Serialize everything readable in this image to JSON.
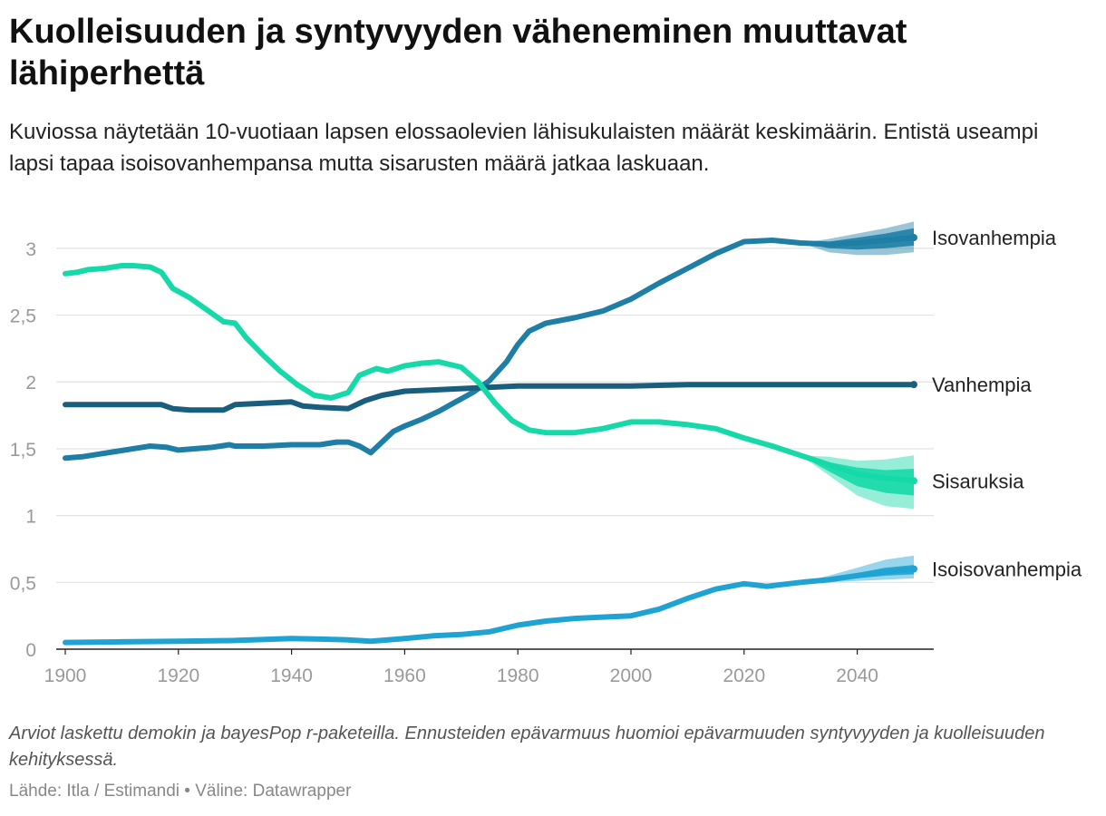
{
  "title": "Kuolleisuuden ja syntyvyyden väheneminen muuttavat lähiperhettä",
  "subtitle": "Kuviossa näytetään 10-vuotiaan lapsen elossaolevien lähisukulaisten määrät keskimäärin. Entistä useampi lapsi tapaa isoisovanhempansa mutta sisarusten määrä jatkaa laskuaan.",
  "notes": "Arviot laskettu demokin ja bayesPop r-paketeilla. Ennusteiden epävarmuus huomioi epävarmuuden syntyvyyden ja kuolleisuuden kehityksessä.",
  "source_line": {
    "source_label": "Lähde:",
    "source": "Itla / Estimandi",
    "separator": "•",
    "tool_label": "Väline:",
    "tool": "Datawrapper"
  },
  "chart_data": {
    "type": "line",
    "title": "Kuolleisuuden ja syntyvyyden väheneminen muuttavat lähiperhettä",
    "xlabel": "",
    "ylabel": "",
    "xlim": [
      1900,
      2050
    ],
    "ylim": [
      0,
      3.25
    ],
    "x_ticks": [
      1900,
      1920,
      1940,
      1960,
      1980,
      2000,
      2020,
      2040
    ],
    "y_ticks": [
      0,
      0.5,
      1,
      1.5,
      2,
      2.5,
      3
    ],
    "y_tick_labels": [
      "0",
      "0,5",
      "1",
      "1,5",
      "2",
      "2,5",
      "3"
    ],
    "grid": true,
    "forecast_from": 2030,
    "series": [
      {
        "name": "Isovanhempia",
        "color": "#1e7ea6",
        "points": [
          [
            1900,
            1.43
          ],
          [
            1903,
            1.44
          ],
          [
            1906,
            1.46
          ],
          [
            1909,
            1.48
          ],
          [
            1912,
            1.5
          ],
          [
            1915,
            1.52
          ],
          [
            1918,
            1.51
          ],
          [
            1920,
            1.49
          ],
          [
            1923,
            1.5
          ],
          [
            1926,
            1.51
          ],
          [
            1929,
            1.53
          ],
          [
            1930,
            1.52
          ],
          [
            1935,
            1.52
          ],
          [
            1940,
            1.53
          ],
          [
            1945,
            1.53
          ],
          [
            1948,
            1.55
          ],
          [
            1950,
            1.55
          ],
          [
            1952,
            1.52
          ],
          [
            1954,
            1.47
          ],
          [
            1956,
            1.55
          ],
          [
            1958,
            1.63
          ],
          [
            1960,
            1.67
          ],
          [
            1963,
            1.72
          ],
          [
            1966,
            1.78
          ],
          [
            1969,
            1.85
          ],
          [
            1972,
            1.92
          ],
          [
            1975,
            2.01
          ],
          [
            1978,
            2.15
          ],
          [
            1980,
            2.28
          ],
          [
            1982,
            2.38
          ],
          [
            1985,
            2.44
          ],
          [
            1990,
            2.48
          ],
          [
            1995,
            2.53
          ],
          [
            2000,
            2.62
          ],
          [
            2005,
            2.74
          ],
          [
            2010,
            2.85
          ],
          [
            2015,
            2.96
          ],
          [
            2020,
            3.05
          ],
          [
            2025,
            3.06
          ],
          [
            2030,
            3.04
          ],
          [
            2035,
            3.03
          ],
          [
            2040,
            3.04
          ],
          [
            2045,
            3.06
          ],
          [
            2050,
            3.08
          ]
        ],
        "band_inner": [
          [
            2030,
            3.04,
            3.04
          ],
          [
            2035,
            3.0,
            3.05
          ],
          [
            2040,
            2.99,
            3.08
          ],
          [
            2045,
            3.0,
            3.11
          ],
          [
            2050,
            3.02,
            3.15
          ]
        ],
        "band_outer": [
          [
            2030,
            3.04,
            3.04
          ],
          [
            2035,
            2.97,
            3.07
          ],
          [
            2040,
            2.95,
            3.11
          ],
          [
            2045,
            2.95,
            3.15
          ],
          [
            2050,
            2.97,
            3.2
          ]
        ]
      },
      {
        "name": "Vanhempia",
        "color": "#1a5e7e",
        "points": [
          [
            1900,
            1.83
          ],
          [
            1905,
            1.83
          ],
          [
            1910,
            1.83
          ],
          [
            1917,
            1.83
          ],
          [
            1919,
            1.8
          ],
          [
            1922,
            1.79
          ],
          [
            1928,
            1.79
          ],
          [
            1930,
            1.83
          ],
          [
            1935,
            1.84
          ],
          [
            1940,
            1.85
          ],
          [
            1942,
            1.82
          ],
          [
            1945,
            1.81
          ],
          [
            1950,
            1.8
          ],
          [
            1953,
            1.86
          ],
          [
            1956,
            1.9
          ],
          [
            1960,
            1.93
          ],
          [
            1965,
            1.94
          ],
          [
            1970,
            1.95
          ],
          [
            1980,
            1.97
          ],
          [
            1990,
            1.97
          ],
          [
            2000,
            1.97
          ],
          [
            2010,
            1.98
          ],
          [
            2020,
            1.98
          ],
          [
            2030,
            1.98
          ],
          [
            2040,
            1.98
          ],
          [
            2050,
            1.98
          ]
        ]
      },
      {
        "name": "Sisaruksia",
        "color": "#16d9a9",
        "points": [
          [
            1900,
            2.81
          ],
          [
            1902,
            2.82
          ],
          [
            1904,
            2.84
          ],
          [
            1907,
            2.85
          ],
          [
            1910,
            2.87
          ],
          [
            1912,
            2.87
          ],
          [
            1915,
            2.86
          ],
          [
            1917,
            2.82
          ],
          [
            1919,
            2.7
          ],
          [
            1922,
            2.63
          ],
          [
            1925,
            2.54
          ],
          [
            1928,
            2.45
          ],
          [
            1930,
            2.44
          ],
          [
            1932,
            2.33
          ],
          [
            1935,
            2.2
          ],
          [
            1938,
            2.08
          ],
          [
            1941,
            1.98
          ],
          [
            1944,
            1.9
          ],
          [
            1947,
            1.88
          ],
          [
            1950,
            1.92
          ],
          [
            1952,
            2.05
          ],
          [
            1955,
            2.1
          ],
          [
            1957,
            2.08
          ],
          [
            1960,
            2.12
          ],
          [
            1963,
            2.14
          ],
          [
            1966,
            2.15
          ],
          [
            1970,
            2.11
          ],
          [
            1973,
            2.0
          ],
          [
            1976,
            1.84
          ],
          [
            1979,
            1.71
          ],
          [
            1982,
            1.64
          ],
          [
            1985,
            1.62
          ],
          [
            1990,
            1.62
          ],
          [
            1995,
            1.65
          ],
          [
            2000,
            1.7
          ],
          [
            2005,
            1.7
          ],
          [
            2010,
            1.68
          ],
          [
            2015,
            1.65
          ],
          [
            2020,
            1.58
          ],
          [
            2025,
            1.52
          ],
          [
            2030,
            1.45
          ],
          [
            2035,
            1.38
          ],
          [
            2040,
            1.31
          ],
          [
            2045,
            1.28
          ],
          [
            2050,
            1.26
          ]
        ],
        "band_inner": [
          [
            2030,
            1.45,
            1.45
          ],
          [
            2035,
            1.33,
            1.4
          ],
          [
            2040,
            1.22,
            1.36
          ],
          [
            2045,
            1.17,
            1.34
          ],
          [
            2050,
            1.15,
            1.35
          ]
        ],
        "band_outer": [
          [
            2030,
            1.45,
            1.45
          ],
          [
            2035,
            1.3,
            1.44
          ],
          [
            2040,
            1.15,
            1.41
          ],
          [
            2045,
            1.07,
            1.42
          ],
          [
            2050,
            1.05,
            1.45
          ]
        ]
      },
      {
        "name": "Isoisovanhempia",
        "color": "#1fa3d3",
        "points": [
          [
            1900,
            0.05
          ],
          [
            1910,
            0.055
          ],
          [
            1920,
            0.06
          ],
          [
            1930,
            0.065
          ],
          [
            1940,
            0.08
          ],
          [
            1945,
            0.075
          ],
          [
            1950,
            0.07
          ],
          [
            1954,
            0.06
          ],
          [
            1957,
            0.07
          ],
          [
            1960,
            0.08
          ],
          [
            1965,
            0.1
          ],
          [
            1970,
            0.11
          ],
          [
            1975,
            0.13
          ],
          [
            1980,
            0.18
          ],
          [
            1985,
            0.21
          ],
          [
            1990,
            0.23
          ],
          [
            1995,
            0.24
          ],
          [
            2000,
            0.25
          ],
          [
            2005,
            0.3
          ],
          [
            2010,
            0.38
          ],
          [
            2015,
            0.45
          ],
          [
            2020,
            0.49
          ],
          [
            2024,
            0.47
          ],
          [
            2030,
            0.5
          ],
          [
            2035,
            0.52
          ],
          [
            2040,
            0.55
          ],
          [
            2045,
            0.58
          ],
          [
            2050,
            0.6
          ]
        ],
        "band_inner": [
          [
            2030,
            0.5,
            0.5
          ],
          [
            2035,
            0.51,
            0.53
          ],
          [
            2040,
            0.53,
            0.57
          ],
          [
            2045,
            0.55,
            0.61
          ],
          [
            2050,
            0.56,
            0.63
          ]
        ],
        "band_outer": [
          [
            2030,
            0.5,
            0.5
          ],
          [
            2035,
            0.5,
            0.55
          ],
          [
            2040,
            0.51,
            0.61
          ],
          [
            2045,
            0.52,
            0.67
          ],
          [
            2050,
            0.53,
            0.7
          ]
        ]
      }
    ]
  }
}
